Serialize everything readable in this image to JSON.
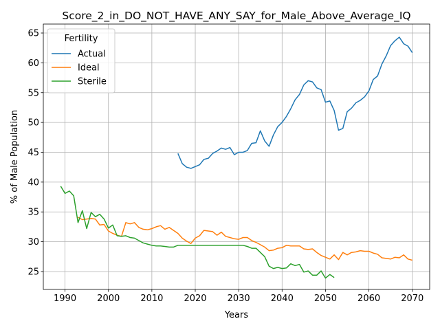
{
  "chart_data": {
    "type": "line",
    "title": "Score_2_in_DO_NOT_HAVE_ANY_SAY_for_Male_Above_Average_IQ",
    "xlabel": "Years",
    "ylabel": "% of Male Population",
    "xlim": [
      1985,
      2074
    ],
    "ylim": [
      22,
      66.5
    ],
    "xticks": [
      1990,
      2000,
      2010,
      2020,
      2030,
      2040,
      2050,
      2060,
      2070
    ],
    "yticks": [
      25,
      30,
      35,
      40,
      45,
      50,
      55,
      60,
      65
    ],
    "grid": true,
    "legend": {
      "title": "Fertility",
      "placement": "top-left"
    },
    "series": [
      {
        "name": "Actual",
        "color": "#1f77b4",
        "x": [
          2016,
          2017,
          2018,
          2019,
          2020,
          2021,
          2022,
          2023,
          2024,
          2025,
          2026,
          2027,
          2028,
          2029,
          2030,
          2031,
          2032,
          2033,
          2034,
          2035,
          2036,
          2037,
          2038,
          2039,
          2040,
          2041,
          2042,
          2043,
          2044,
          2045,
          2046,
          2047,
          2048,
          2049,
          2050,
          2051,
          2052,
          2053,
          2054,
          2055,
          2056,
          2057,
          2058,
          2059,
          2060,
          2061,
          2062,
          2063,
          2064,
          2065,
          2066,
          2067,
          2068,
          2069,
          2070
        ],
        "y": [
          44.8,
          43.1,
          42.5,
          42.3,
          42.6,
          42.9,
          43.8,
          44.0,
          44.8,
          45.2,
          45.7,
          45.5,
          45.8,
          44.6,
          45.0,
          45.0,
          45.3,
          46.5,
          46.6,
          48.6,
          46.9,
          46.0,
          47.9,
          49.3,
          50.0,
          51.0,
          52.3,
          53.8,
          54.7,
          56.3,
          57.0,
          56.8,
          55.8,
          55.5,
          53.4,
          53.6,
          52.0,
          48.7,
          49.0,
          51.8,
          52.4,
          53.3,
          53.7,
          54.3,
          55.3,
          57.2,
          57.8,
          59.8,
          61.2,
          62.9,
          63.7,
          64.3,
          63.2,
          62.8,
          61.7
        ]
      },
      {
        "name": "Ideal",
        "color": "#ff7f0e",
        "x": [
          1993,
          1994,
          1995,
          1996,
          1997,
          1998,
          1999,
          2000,
          2001,
          2002,
          2003,
          2004,
          2005,
          2006,
          2007,
          2008,
          2009,
          2010,
          2011,
          2012,
          2013,
          2014,
          2015,
          2016,
          2017,
          2018,
          2019,
          2020,
          2021,
          2022,
          2023,
          2024,
          2025,
          2026,
          2027,
          2028,
          2029,
          2030,
          2031,
          2032,
          2033,
          2034,
          2035,
          2036,
          2037,
          2038,
          2039,
          2040,
          2041,
          2042,
          2043,
          2044,
          2045,
          2046,
          2047,
          2048,
          2049,
          2050,
          2051,
          2052,
          2053,
          2054,
          2055,
          2056,
          2057,
          2058,
          2059,
          2060,
          2061,
          2062,
          2063,
          2064,
          2065,
          2066,
          2067,
          2068,
          2069,
          2070
        ],
        "y": [
          34.1,
          33.7,
          33.8,
          33.9,
          33.8,
          32.8,
          32.9,
          31.8,
          31.4,
          31.1,
          30.9,
          33.2,
          33.0,
          33.2,
          32.4,
          32.1,
          32.0,
          32.2,
          32.5,
          32.7,
          32.1,
          32.4,
          31.9,
          31.4,
          30.6,
          30.1,
          29.7,
          30.6,
          31.0,
          31.9,
          31.8,
          31.7,
          31.1,
          31.6,
          30.9,
          30.7,
          30.5,
          30.4,
          30.7,
          30.7,
          30.2,
          29.9,
          29.5,
          29.1,
          28.5,
          28.6,
          28.9,
          29.0,
          29.4,
          29.3,
          29.3,
          29.3,
          28.8,
          28.7,
          28.8,
          28.2,
          27.7,
          27.4,
          27.1,
          27.8,
          27.0,
          28.2,
          27.8,
          28.2,
          28.3,
          28.5,
          28.4,
          28.4,
          28.1,
          27.9,
          27.3,
          27.2,
          27.1,
          27.4,
          27.3,
          27.8,
          27.1,
          26.9
        ]
      },
      {
        "name": "Sterile",
        "color": "#2ca02c",
        "x": [
          1989,
          1990,
          1991,
          1992,
          1993,
          1994,
          1995,
          1996,
          1997,
          1998,
          1999,
          2000,
          2001,
          2002,
          2003,
          2004,
          2005,
          2006,
          2007,
          2008,
          2009,
          2010,
          2011,
          2012,
          2013,
          2014,
          2015,
          2016,
          2017,
          2018,
          2019,
          2020,
          2021,
          2022,
          2023,
          2024,
          2025,
          2026,
          2027,
          2028,
          2029,
          2030,
          2031,
          2032,
          2033,
          2034,
          2035,
          2036,
          2037,
          2038,
          2039,
          2040,
          2041,
          2042,
          2043,
          2044,
          2045,
          2046,
          2047,
          2048,
          2049,
          2050,
          2051,
          2052
        ],
        "y": [
          39.3,
          38.1,
          38.5,
          37.7,
          33.2,
          35.2,
          32.2,
          34.9,
          34.2,
          34.6,
          33.8,
          32.3,
          32.8,
          31.0,
          30.9,
          31.0,
          30.7,
          30.6,
          30.2,
          29.8,
          29.6,
          29.4,
          29.3,
          29.3,
          29.2,
          29.1,
          29.1,
          29.4,
          29.4,
          29.4,
          29.4,
          29.4,
          29.4,
          29.4,
          29.4,
          29.4,
          29.4,
          29.4,
          29.4,
          29.4,
          29.4,
          29.4,
          29.4,
          29.2,
          28.9,
          28.9,
          28.2,
          27.5,
          25.9,
          25.5,
          25.7,
          25.5,
          25.6,
          26.3,
          26.0,
          26.2,
          24.9,
          25.1,
          24.4,
          24.4,
          25.1,
          23.9,
          24.5,
          24.0
        ]
      }
    ]
  }
}
